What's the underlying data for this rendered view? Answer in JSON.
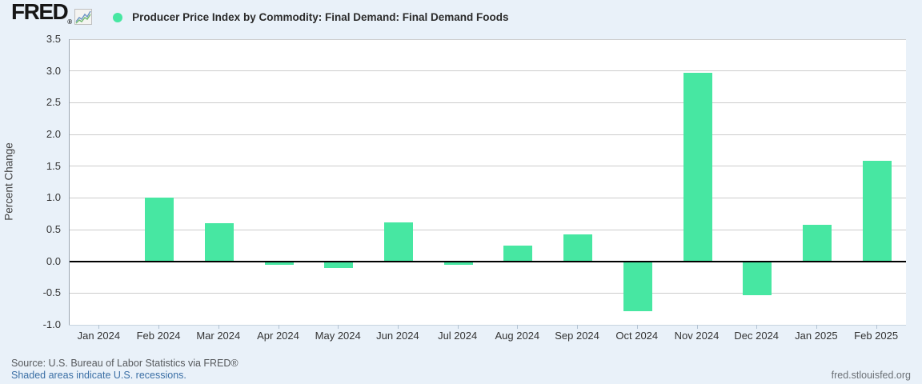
{
  "header": {
    "logo_text": "FRED",
    "logo_reg": "®",
    "title": "Producer Price Index by Commodity: Final Demand: Final Demand Foods"
  },
  "colors": {
    "background": "#e9f1f9",
    "plot_background": "#ffffff",
    "bar": "#47e7a2",
    "legend_dot": "#47e7a2",
    "gridline": "#cccccc",
    "zero_line": "#000000",
    "link_blue": "#3b6fa5"
  },
  "chart_data": {
    "type": "bar",
    "title": "Producer Price Index by Commodity: Final Demand: Final Demand Foods",
    "xlabel": "",
    "ylabel": "Percent Change",
    "categories": [
      "Jan 2024",
      "Feb 2024",
      "Mar 2024",
      "Apr 2024",
      "May 2024",
      "Jun 2024",
      "Jul 2024",
      "Aug 2024",
      "Sep 2024",
      "Oct 2024",
      "Nov 2024",
      "Dec 2024",
      "Jan 2025",
      "Feb 2025"
    ],
    "values": [
      0.0,
      1.0,
      0.6,
      -0.05,
      -0.1,
      0.61,
      -0.06,
      0.25,
      0.43,
      -0.78,
      2.97,
      -0.53,
      0.58,
      1.59
    ],
    "ylim": [
      -1.0,
      3.5
    ],
    "ytick_step": 0.5,
    "yticks": [
      "3.5",
      "3.0",
      "2.5",
      "2.0",
      "1.5",
      "1.0",
      "0.5",
      "0.0",
      "-0.5",
      "-1.0"
    ],
    "grid": true,
    "legend_position": "top",
    "bar_color": "#47e7a2"
  },
  "footer": {
    "source": "Source: U.S. Bureau of Labor Statistics via FRED®",
    "recessions_note": "Shaded areas indicate U.S. recessions.",
    "site": "fred.stlouisfed.org"
  }
}
